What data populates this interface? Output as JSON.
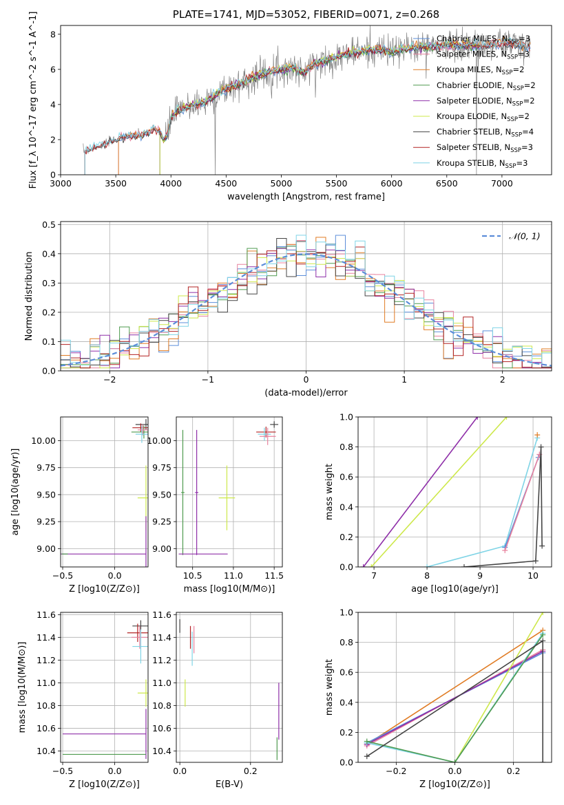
{
  "figure": {
    "title": "PLATE=1741, MJD=53052, FIBERID=0071, z=0.268"
  },
  "colors": {
    "chabrier_miles": "#5b8dd9",
    "salpeter_miles": "#e8829e",
    "kroupa_miles": "#e07b23",
    "chabrier_elodie": "#4e9a4e",
    "salpeter_elodie": "#8e2ea8",
    "kroupa_elodie": "#cde84a",
    "chabrier_stelib": "#444444",
    "salpeter_stelib": "#b22222",
    "kroupa_stelib": "#7fd4e6",
    "data": "#808080",
    "normal": "#5b8dd9",
    "grid": "#b0b0b0"
  },
  "chart_data": [
    {
      "id": "spectrum",
      "type": "line",
      "xlabel": "wavelength [Angstrom, rest frame]",
      "ylabel": "Flux [f_λ 10^-17 erg cm^-2 s^-1 A^-1]",
      "xlim": [
        3000,
        7450
      ],
      "ylim": [
        0,
        8.5
      ],
      "xticks": [
        3000,
        3500,
        4000,
        4500,
        5000,
        5500,
        6000,
        6500,
        7000
      ],
      "yticks": [
        0,
        2,
        4,
        6,
        8
      ],
      "grid": false,
      "legend_position": "right",
      "legend": [
        {
          "label": "Chabrier MILES, N",
          "sub": "SSP",
          "eq": "=3",
          "color_key": "chabrier_miles"
        },
        {
          "label": "Salpeter MILES, N",
          "sub": "SSP",
          "eq": "=3",
          "color_key": "salpeter_miles"
        },
        {
          "label": "Kroupa MILES, N",
          "sub": "SSP",
          "eq": "=2",
          "color_key": "kroupa_miles"
        },
        {
          "label": "Chabrier ELODIE, N",
          "sub": "SSP",
          "eq": "=2",
          "color_key": "chabrier_elodie"
        },
        {
          "label": "Salpeter ELODIE, N",
          "sub": "SSP",
          "eq": "=2",
          "color_key": "salpeter_elodie"
        },
        {
          "label": "Kroupa ELODIE, N",
          "sub": "SSP",
          "eq": "=2",
          "color_key": "kroupa_elodie"
        },
        {
          "label": "Chabrier STELIB, N",
          "sub": "SSP",
          "eq": "=4",
          "color_key": "chabrier_stelib"
        },
        {
          "label": "Salpeter STELIB, N",
          "sub": "SSP",
          "eq": "=3",
          "color_key": "salpeter_stelib"
        },
        {
          "label": "Kroupa STELIB, N",
          "sub": "SSP",
          "eq": "=3",
          "color_key": "kroupa_stelib"
        }
      ],
      "continuum_points": [
        [
          3200,
          1.3
        ],
        [
          3250,
          1.45
        ],
        [
          3300,
          1.55
        ],
        [
          3350,
          1.65
        ],
        [
          3400,
          1.75
        ],
        [
          3450,
          1.9
        ],
        [
          3500,
          2.0
        ],
        [
          3550,
          2.1
        ],
        [
          3600,
          2.15
        ],
        [
          3650,
          2.2
        ],
        [
          3700,
          2.25
        ],
        [
          3750,
          2.3
        ],
        [
          3800,
          2.4
        ],
        [
          3850,
          2.6
        ],
        [
          3900,
          2.5
        ],
        [
          3930,
          1.9
        ],
        [
          3970,
          2.3
        ],
        [
          4000,
          3.2
        ],
        [
          4050,
          3.6
        ],
        [
          4100,
          3.7
        ],
        [
          4200,
          4.0
        ],
        [
          4300,
          4.1
        ],
        [
          4400,
          4.5
        ],
        [
          4500,
          4.9
        ],
        [
          4600,
          5.1
        ],
        [
          4700,
          5.4
        ],
        [
          4800,
          5.7
        ],
        [
          4900,
          5.9
        ],
        [
          5000,
          6.0
        ],
        [
          5100,
          6.1
        ],
        [
          5200,
          5.8
        ],
        [
          5300,
          6.3
        ],
        [
          5400,
          6.5
        ],
        [
          5500,
          6.7
        ],
        [
          5600,
          6.9
        ],
        [
          5700,
          7.0
        ],
        [
          5800,
          7.1
        ],
        [
          5900,
          7.1
        ],
        [
          6000,
          7.0
        ],
        [
          6100,
          7.15
        ],
        [
          6200,
          7.25
        ],
        [
          6300,
          7.3
        ],
        [
          6400,
          7.3
        ],
        [
          6500,
          7.4
        ],
        [
          6600,
          7.4
        ],
        [
          6700,
          7.4
        ],
        [
          6800,
          7.3
        ],
        [
          6900,
          7.45
        ],
        [
          7000,
          7.5
        ],
        [
          7100,
          7.5
        ],
        [
          7200,
          7.3
        ],
        [
          7260,
          7.3
        ]
      ]
    },
    {
      "id": "residuals",
      "type": "bar",
      "xlabel": "(data-model)/error",
      "ylabel": "Normed distribution",
      "xlim": [
        -2.5,
        2.5
      ],
      "ylim": [
        0,
        0.51
      ],
      "xticks": [
        -2,
        -1,
        0,
        1,
        2
      ],
      "yticks": [
        0.0,
        0.1,
        0.2,
        0.3,
        0.4,
        0.5
      ],
      "grid": true,
      "legend_position": "top-right",
      "legend": [
        {
          "label": "𝒩(0, 1)",
          "color_key": "normal"
        }
      ],
      "bin_width": 0.1
    },
    {
      "id": "age_vs_Z",
      "type": "scatter",
      "xlabel": "Z [log10(Z/Z⊙)]",
      "ylabel": "age  [log10(age/yr)]",
      "xlim": [
        -0.52,
        0.32
      ],
      "ylim": [
        8.83,
        10.22
      ],
      "xticks": [
        -0.5,
        0.0
      ],
      "yticks": [
        9.0,
        9.25,
        9.5,
        9.75,
        10.0
      ],
      "grid": true,
      "points": [
        {
          "x": 0.3,
          "y": 10.15,
          "xerr": 0.1,
          "yerr": 0.05,
          "color_key": "chabrier_stelib"
        },
        {
          "x": 0.25,
          "y": 10.12,
          "xerr": 0.08,
          "yerr": 0.04,
          "color_key": "salpeter_stelib"
        },
        {
          "x": 0.28,
          "y": 10.08,
          "xerr": 0.12,
          "yerr": 0.06,
          "color_key": "chabrier_elodie"
        },
        {
          "x": 0.27,
          "y": 10.1,
          "xerr": 0.05,
          "yerr": 0.05,
          "color_key": "salpeter_miles"
        },
        {
          "x": 0.26,
          "y": 10.06,
          "xerr": 0.06,
          "yerr": 0.08,
          "color_key": "kroupa_stelib"
        },
        {
          "x": 0.3,
          "y": 9.47,
          "xerr": 0.08,
          "yerr": 0.3,
          "color_key": "kroupa_elodie"
        },
        {
          "x": -0.4,
          "y": 8.95,
          "xerr": 0.7,
          "yerr": 0.0,
          "color_key": "salpeter_elodie"
        },
        {
          "x": 0.3,
          "y": 8.95,
          "xerr": 0.0,
          "yerr": 0.35,
          "color_key": "salpeter_elodie"
        },
        {
          "x": -0.48,
          "y": 8.95,
          "xerr": 0.03,
          "yerr": 0.0,
          "color_key": "chabrier_elodie"
        }
      ]
    },
    {
      "id": "age_vs_mass",
      "type": "scatter",
      "xlabel": "mass [log10(M/M⊙)]",
      "ylabel": "",
      "xlim": [
        10.3,
        11.6
      ],
      "ylim": [
        8.83,
        10.22
      ],
      "xticks": [
        10.5,
        11.0,
        11.5
      ],
      "yticks": [
        9.0,
        9.25,
        9.5,
        9.75,
        10.0
      ],
      "grid": true,
      "points": [
        {
          "x": 11.5,
          "y": 10.15,
          "xerr": 0.05,
          "yerr": 0.03,
          "color_key": "chabrier_stelib"
        },
        {
          "x": 11.4,
          "y": 10.08,
          "xerr": 0.12,
          "yerr": 0.05,
          "color_key": "salpeter_stelib"
        },
        {
          "x": 11.38,
          "y": 10.06,
          "xerr": 0.08,
          "yerr": 0.06,
          "color_key": "kroupa_stelib"
        },
        {
          "x": 11.42,
          "y": 10.04,
          "xerr": 0.1,
          "yerr": 0.08,
          "color_key": "salpeter_miles"
        },
        {
          "x": 10.92,
          "y": 9.47,
          "xerr": 0.1,
          "yerr": 0.3,
          "color_key": "kroupa_elodie"
        },
        {
          "x": 10.55,
          "y": 9.52,
          "xerr": 0.02,
          "yerr": 0.58,
          "color_key": "salpeter_elodie"
        },
        {
          "x": 10.38,
          "y": 9.52,
          "xerr": 0.02,
          "yerr": 0.58,
          "color_key": "chabrier_elodie"
        },
        {
          "x": 10.63,
          "y": 8.95,
          "xerr": 0.3,
          "yerr": 0.0,
          "color_key": "salpeter_elodie"
        }
      ]
    },
    {
      "id": "weight_vs_age",
      "type": "line",
      "xlabel": "age  [log10(age/yr)]",
      "ylabel": "mass weight",
      "xlim": [
        6.7,
        10.35
      ],
      "ylim": [
        0,
        1
      ],
      "xticks": [
        7,
        8,
        9,
        10
      ],
      "yticks": [
        0.0,
        0.2,
        0.4,
        0.6,
        0.8,
        1.0
      ],
      "grid": true,
      "series": [
        {
          "color_key": "salpeter_elodie",
          "points": [
            [
              6.8,
              0.0
            ],
            [
              8.95,
              1.0
            ]
          ]
        },
        {
          "color_key": "kroupa_elodie",
          "points": [
            [
              6.95,
              0.0
            ],
            [
              9.5,
              1.0
            ]
          ]
        },
        {
          "color_key": "kroupa_stelib",
          "points": [
            [
              8.0,
              0.0
            ],
            [
              9.47,
              0.14
            ],
            [
              10.08,
              0.86
            ]
          ]
        },
        {
          "color_key": "chabrier_miles",
          "points": [
            [
              9.47,
              0.13
            ],
            [
              10.1,
              0.73
            ]
          ]
        },
        {
          "color_key": "salpeter_miles",
          "points": [
            [
              9.47,
              0.11
            ],
            [
              10.12,
              0.75
            ]
          ]
        },
        {
          "color_key": "kroupa_miles",
          "points": [
            [
              10.08,
              0.88
            ]
          ]
        },
        {
          "color_key": "chabrier_stelib",
          "points": [
            [
              8.7,
              0.0
            ],
            [
              10.05,
              0.04
            ],
            [
              10.15,
              0.8
            ],
            [
              10.17,
              0.14
            ]
          ]
        }
      ]
    },
    {
      "id": "mass_vs_Z",
      "type": "scatter",
      "xlabel": "Z [log10(Z/Z⊙)]",
      "ylabel": "mass [log10(M/M⊙)]",
      "xlim": [
        -0.52,
        0.32
      ],
      "ylim": [
        10.3,
        11.62
      ],
      "xticks": [
        -0.5,
        0.0
      ],
      "yticks": [
        10.4,
        10.6,
        10.8,
        11.0,
        11.2,
        11.4,
        11.6
      ],
      "grid": true,
      "points": [
        {
          "x": 0.25,
          "y": 11.5,
          "xerr": 0.08,
          "yerr": 0.05,
          "color_key": "chabrier_stelib"
        },
        {
          "x": 0.22,
          "y": 11.44,
          "xerr": 0.1,
          "yerr": 0.08,
          "color_key": "salpeter_stelib"
        },
        {
          "x": 0.24,
          "y": 11.4,
          "xerr": 0.08,
          "yerr": 0.1,
          "color_key": "salpeter_miles"
        },
        {
          "x": 0.25,
          "y": 11.32,
          "xerr": 0.08,
          "yerr": 0.15,
          "color_key": "kroupa_stelib"
        },
        {
          "x": 0.3,
          "y": 10.91,
          "xerr": 0.08,
          "yerr": 0.12,
          "color_key": "kroupa_elodie"
        },
        {
          "x": -0.1,
          "y": 10.55,
          "xerr": 0.4,
          "yerr": 0.0,
          "color_key": "salpeter_elodie"
        },
        {
          "x": 0.3,
          "y": 10.55,
          "xerr": 0.0,
          "yerr": 0.22,
          "color_key": "salpeter_elodie"
        },
        {
          "x": -0.1,
          "y": 10.37,
          "xerr": 0.4,
          "yerr": 0.0,
          "color_key": "chabrier_elodie"
        }
      ]
    },
    {
      "id": "mass_vs_ebv",
      "type": "scatter",
      "xlabel": "E(B-V)",
      "ylabel": "",
      "xlim": [
        -0.01,
        0.29
      ],
      "ylim": [
        10.3,
        11.62
      ],
      "xticks": [
        0.0,
        0.2
      ],
      "yticks": [
        10.4,
        10.6,
        10.8,
        11.0,
        11.2,
        11.4,
        11.6
      ],
      "grid": true,
      "points": [
        {
          "x": 0.0,
          "y": 11.5,
          "xerr": 0.0,
          "yerr": 0.06,
          "color_key": "chabrier_stelib"
        },
        {
          "x": 0.03,
          "y": 11.4,
          "xerr": 0.0,
          "yerr": 0.1,
          "color_key": "salpeter_stelib"
        },
        {
          "x": 0.04,
          "y": 11.38,
          "xerr": 0.0,
          "yerr": 0.12,
          "color_key": "salpeter_miles"
        },
        {
          "x": 0.035,
          "y": 11.3,
          "xerr": 0.0,
          "yerr": 0.15,
          "color_key": "kroupa_stelib"
        },
        {
          "x": 0.015,
          "y": 10.91,
          "xerr": 0.0,
          "yerr": 0.12,
          "color_key": "kroupa_elodie"
        },
        {
          "x": 0.28,
          "y": 10.75,
          "xerr": 0.0,
          "yerr": 0.25,
          "color_key": "salpeter_elodie"
        },
        {
          "x": 0.275,
          "y": 10.42,
          "xerr": 0.0,
          "yerr": 0.1,
          "color_key": "chabrier_elodie"
        }
      ]
    },
    {
      "id": "weight_vs_Z",
      "type": "line",
      "xlabel": "Z [log10(Z/Z⊙)]",
      "ylabel": "mass weight",
      "xlim": [
        -0.33,
        0.33
      ],
      "ylim": [
        0,
        1
      ],
      "xticks": [
        -0.2,
        0.0,
        0.2
      ],
      "yticks": [
        0.0,
        0.2,
        0.4,
        0.6,
        0.8,
        1.0
      ],
      "grid": true,
      "series": [
        {
          "color_key": "kroupa_miles",
          "points": [
            [
              -0.3,
              0.12
            ],
            [
              0.3,
              0.88
            ]
          ]
        },
        {
          "color_key": "salpeter_miles",
          "points": [
            [
              -0.3,
              0.11
            ],
            [
              0.3,
              0.75
            ]
          ]
        },
        {
          "color_key": "chabrier_miles",
          "points": [
            [
              -0.3,
              0.13
            ],
            [
              0.3,
              0.73
            ]
          ]
        },
        {
          "color_key": "salpeter_elodie",
          "points": [
            [
              -0.3,
              0.12
            ],
            [
              0.3,
              0.74
            ]
          ]
        },
        {
          "color_key": "kroupa_elodie",
          "points": [
            [
              0.0,
              0.0
            ],
            [
              0.3,
              1.0
            ]
          ]
        },
        {
          "color_key": "kroupa_stelib",
          "points": [
            [
              -0.3,
              0.13
            ],
            [
              0.0,
              0.0
            ],
            [
              0.3,
              0.86
            ]
          ]
        },
        {
          "color_key": "chabrier_elodie",
          "points": [
            [
              -0.3,
              0.14
            ],
            [
              0.0,
              0.0
            ],
            [
              0.3,
              0.85
            ]
          ]
        },
        {
          "color_key": "chabrier_stelib",
          "points": [
            [
              -0.3,
              0.04
            ],
            [
              0.3,
              0.81
            ],
            [
              0.3,
              0.0
            ]
          ]
        }
      ]
    }
  ]
}
